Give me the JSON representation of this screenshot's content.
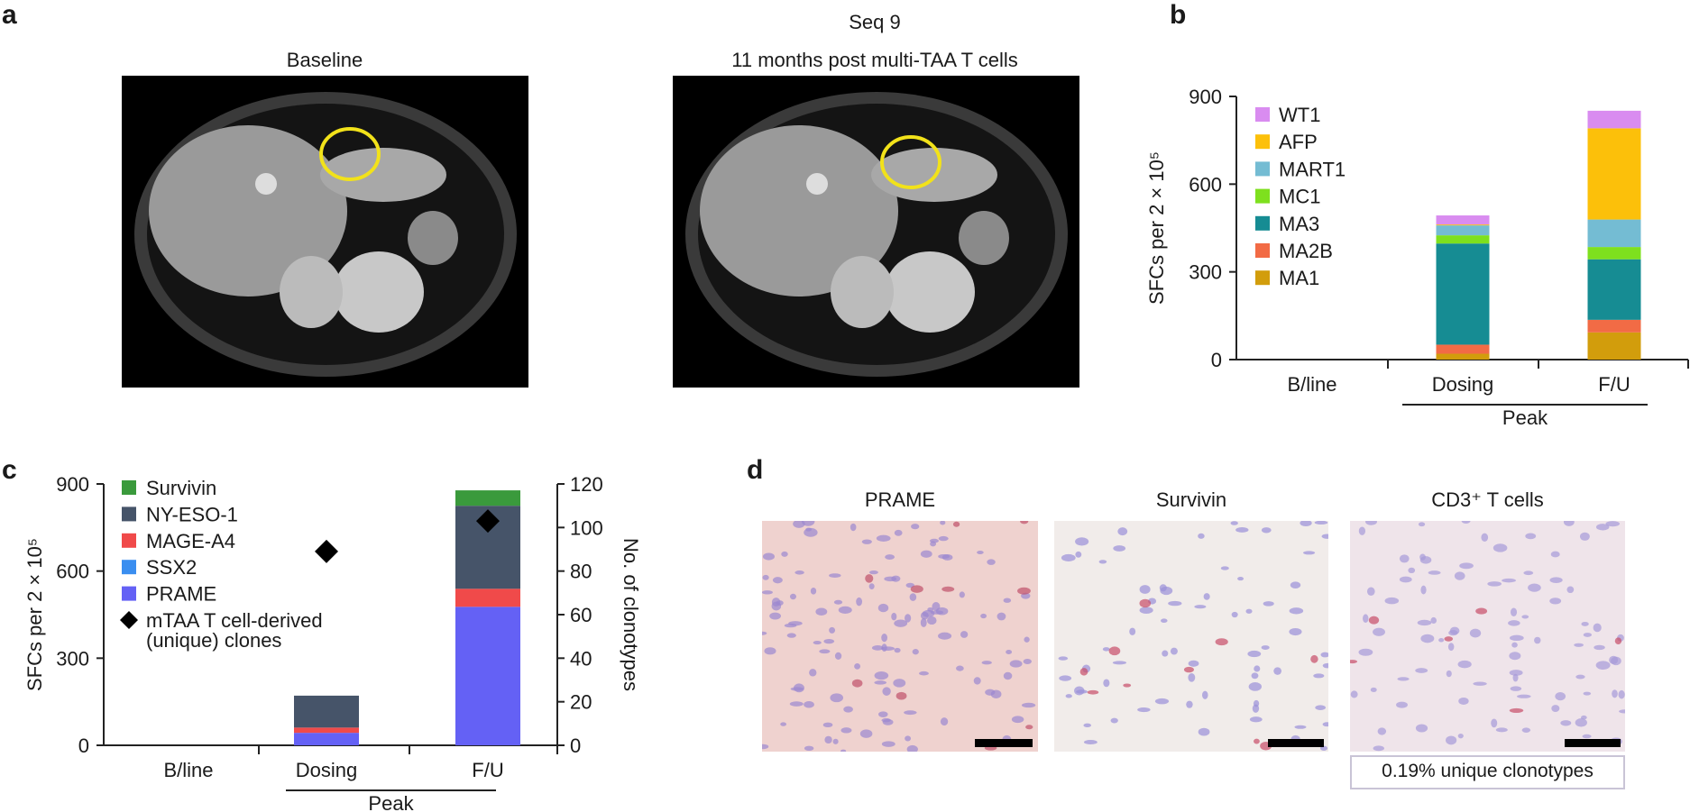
{
  "panel_a": {
    "label": "a",
    "left_title": "Baseline",
    "right_title_line1": "Seq 9",
    "right_title_line2": "11 months post multi-TAA T cells"
  },
  "panel_b": {
    "label": "b"
  },
  "panel_c": {
    "label": "c"
  },
  "panel_d": {
    "label": "d",
    "images": [
      {
        "title": "PRAME"
      },
      {
        "title": "Survivin"
      },
      {
        "title": "CD3⁺ T cells"
      }
    ],
    "box_label": "0.19% unique clonotypes"
  },
  "chart_data": [
    {
      "id": "b",
      "type": "bar",
      "stacked": true,
      "categories": [
        "B/line",
        "Dosing",
        "F/U"
      ],
      "group_label": "Peak",
      "ylabel": "SFCs per 2 × 10⁵",
      "ylim": [
        0,
        900
      ],
      "yticks": [
        "0",
        "300",
        "600",
        "900"
      ],
      "legend_position": "top-left",
      "series": [
        {
          "name": "MA1",
          "color": "#d29d0c",
          "values": [
            0,
            20,
            93
          ]
        },
        {
          "name": "MA2B",
          "color": "#f26b45",
          "values": [
            0,
            31,
            43
          ]
        },
        {
          "name": "MA3",
          "color": "#168c93",
          "values": [
            0,
            346,
            207
          ]
        },
        {
          "name": "MC1",
          "color": "#7ee01e",
          "values": [
            0,
            28,
            42
          ]
        },
        {
          "name": "MART1",
          "color": "#74bcd3",
          "values": [
            0,
            34,
            94
          ]
        },
        {
          "name": "AFP",
          "color": "#fcc00a",
          "values": [
            0,
            3,
            312
          ]
        },
        {
          "name": "WT1",
          "color": "#d98cf0",
          "values": [
            0,
            31,
            60
          ]
        }
      ],
      "legend_order": [
        "WT1",
        "AFP",
        "MART1",
        "MC1",
        "MA3",
        "MA2B",
        "MA1"
      ]
    },
    {
      "id": "c",
      "type": "bar",
      "stacked": true,
      "categories": [
        "B/line",
        "Dosing",
        "F/U"
      ],
      "group_label": "Peak",
      "ylabel": "SFCs per 2 × 10⁵",
      "ylim": [
        0,
        900
      ],
      "yticks": [
        "0",
        "300",
        "600",
        "900"
      ],
      "y2label": "No. of clonotypes",
      "y2lim": [
        0,
        120
      ],
      "y2ticks": [
        "0",
        "20",
        "40",
        "60",
        "80",
        "100",
        "120"
      ],
      "legend_position": "top-left",
      "series": [
        {
          "name": "PRAME",
          "color": "#6461f5",
          "values": [
            0,
            43,
            477
          ]
        },
        {
          "name": "SSX2",
          "color": "#3a8ef0",
          "values": [
            0,
            0,
            0
          ]
        },
        {
          "name": "MAGE-A4",
          "color": "#f04a4a",
          "values": [
            0,
            18,
            62
          ]
        },
        {
          "name": "NY-ESO-1",
          "color": "#465469",
          "values": [
            0,
            110,
            286
          ]
        },
        {
          "name": "Survivin",
          "color": "#3a9a3c",
          "values": [
            0,
            0,
            53
          ]
        }
      ],
      "legend_order": [
        "Survivin",
        "NY-ESO-1",
        "MAGE-A4",
        "SSX2",
        "PRAME"
      ],
      "markers": {
        "name_line1": "mTAA T cell-derived",
        "name_line2": "(unique) clones",
        "axis": "y2",
        "shape": "diamond",
        "color": "#000000",
        "values": [
          null,
          89,
          103
        ]
      }
    }
  ]
}
